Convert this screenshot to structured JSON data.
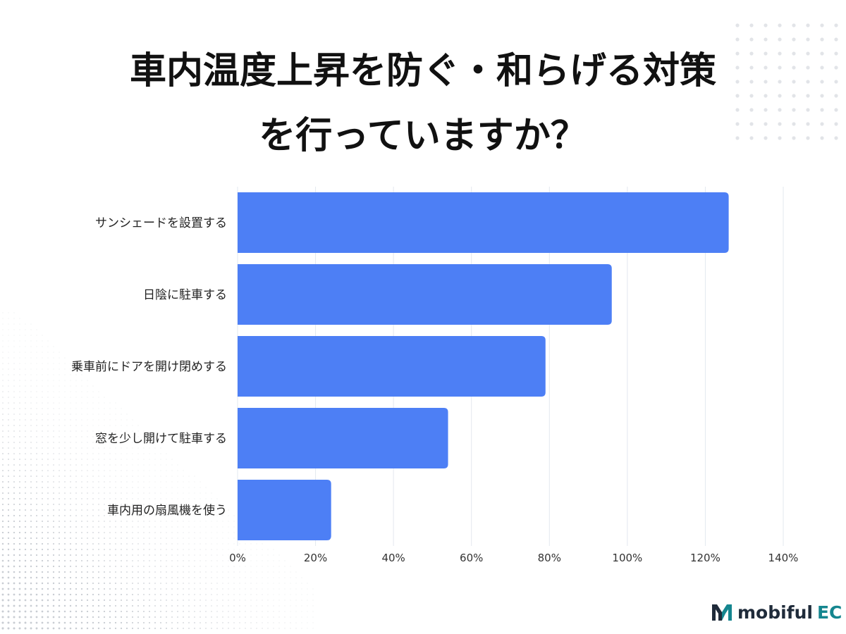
{
  "title_lines": [
    "車内温度上昇を防ぐ・和らげる対策",
    "を行っていますか？"
  ],
  "brand": {
    "name": "mobiful",
    "accent_text": "EC",
    "mark": "M"
  },
  "colors": {
    "bar": "#4d7ff5",
    "grid": "#e3e8ef",
    "text": "#111111",
    "brand_accent": "#15868f",
    "brand_dark": "#1f2b3a"
  },
  "chart_data": {
    "type": "bar",
    "orientation": "horizontal",
    "categories": [
      "サンシェードを設置する",
      "日陰に駐車する",
      "乗車前にドアを開け閉めする",
      "窓を少し開けて駐車する",
      "車内用の扇風機を使う"
    ],
    "values": [
      126,
      96,
      79,
      54,
      24
    ],
    "unit": "%",
    "xlim": [
      0,
      140
    ],
    "xticks": [
      "0%",
      "20%",
      "40%",
      "60%",
      "80%",
      "100%",
      "120%",
      "140%"
    ],
    "grid": true,
    "legend": "none"
  }
}
